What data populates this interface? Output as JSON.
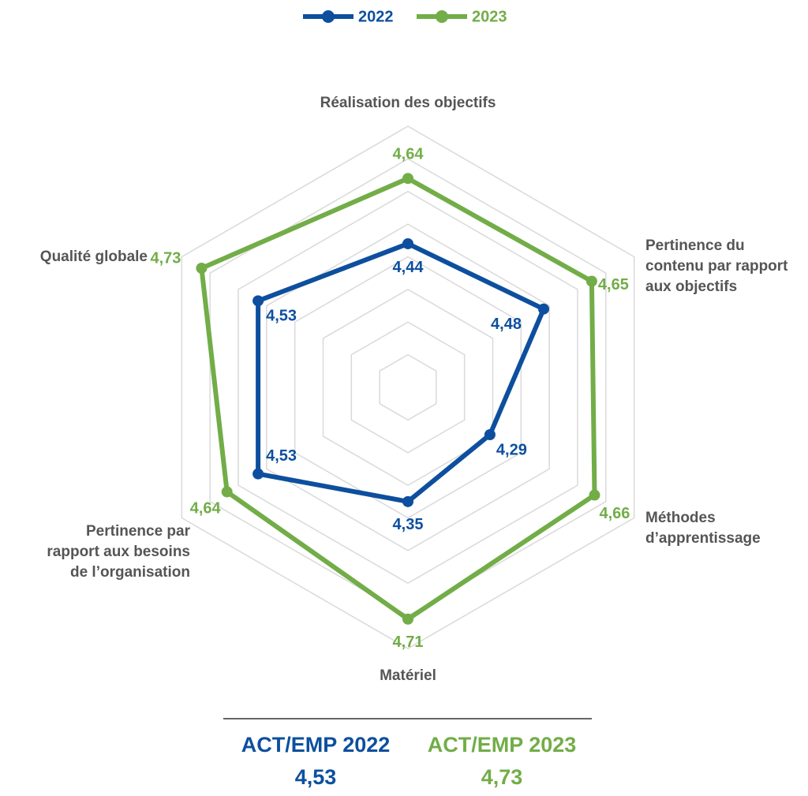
{
  "chart_data": {
    "type": "radar",
    "categories": [
      "Réalisation des objectifs",
      "Pertinence du\ncontenu par rapport\naux objectifs",
      "Méthodes\nd’apprentissage",
      "Matériel",
      "Pertinence par\nrapport aux besoins\nde l’organisation",
      "Qualité globale"
    ],
    "series": [
      {
        "name": "2022",
        "color": "#0d4f9e",
        "values": [
          4.44,
          4.48,
          4.29,
          4.35,
          4.53,
          4.53
        ],
        "value_labels": [
          "4,44",
          "4,48",
          "4,29",
          "4,35",
          "4,53",
          "4,53"
        ]
      },
      {
        "name": "2023",
        "color": "#72ad48",
        "values": [
          4.64,
          4.65,
          4.66,
          4.71,
          4.64,
          4.73
        ],
        "value_labels": [
          "4,64",
          "4,65",
          "4,66",
          "4,71",
          "4,64",
          "4,73"
        ]
      }
    ],
    "ylim": [
      4,
      4.8
    ],
    "yticks": [
      4.1,
      4.2,
      4.3,
      4.4,
      4.5,
      4.6,
      4.7,
      4.8
    ],
    "grid": true,
    "legend": "top"
  },
  "summary": [
    {
      "name": "ACT/EMP 2022",
      "value": 4.53,
      "value_label": "4,53",
      "color": "#0d4f9e"
    },
    {
      "name": "ACT/EMP 2023",
      "value": 4.73,
      "value_label": "4,73",
      "color": "#72ad48"
    }
  ]
}
